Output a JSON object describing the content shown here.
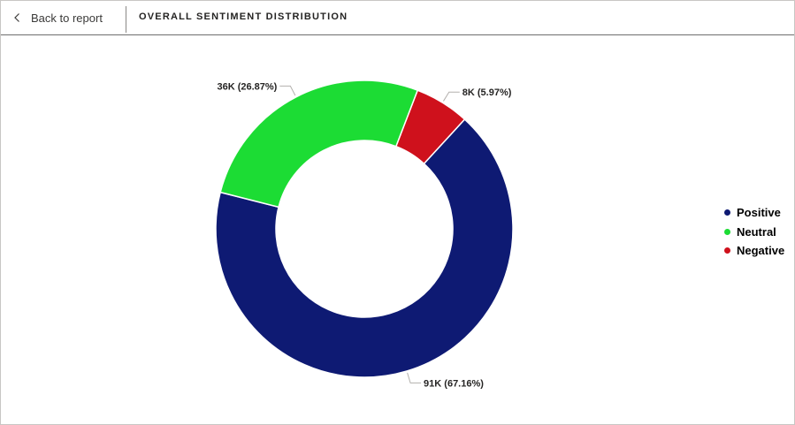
{
  "header": {
    "back_label": "Back to report",
    "title": "OVERALL SENTIMENT DISTRIBUTION"
  },
  "legend": {
    "items": [
      {
        "label": "Positive",
        "color": "#0e1a73"
      },
      {
        "label": "Neutral",
        "color": "#1cdc34"
      },
      {
        "label": "Negative",
        "color": "#cf111c"
      }
    ]
  },
  "chart_data": {
    "type": "pie",
    "variant": "donut",
    "title": "OVERALL SENTIMENT DISTRIBUTION",
    "legend_position": "right",
    "slices": [
      {
        "label": "Positive",
        "value": 91000,
        "percent": 67.16,
        "data_label": "91K (67.16%)",
        "color": "#0e1a73"
      },
      {
        "label": "Neutral",
        "value": 36000,
        "percent": 26.87,
        "data_label": "36K (26.87%)",
        "color": "#1cdc34"
      },
      {
        "label": "Negative",
        "value": 8000,
        "percent": 5.97,
        "data_label": "8K (5.97%)",
        "color": "#cf111c"
      }
    ]
  }
}
